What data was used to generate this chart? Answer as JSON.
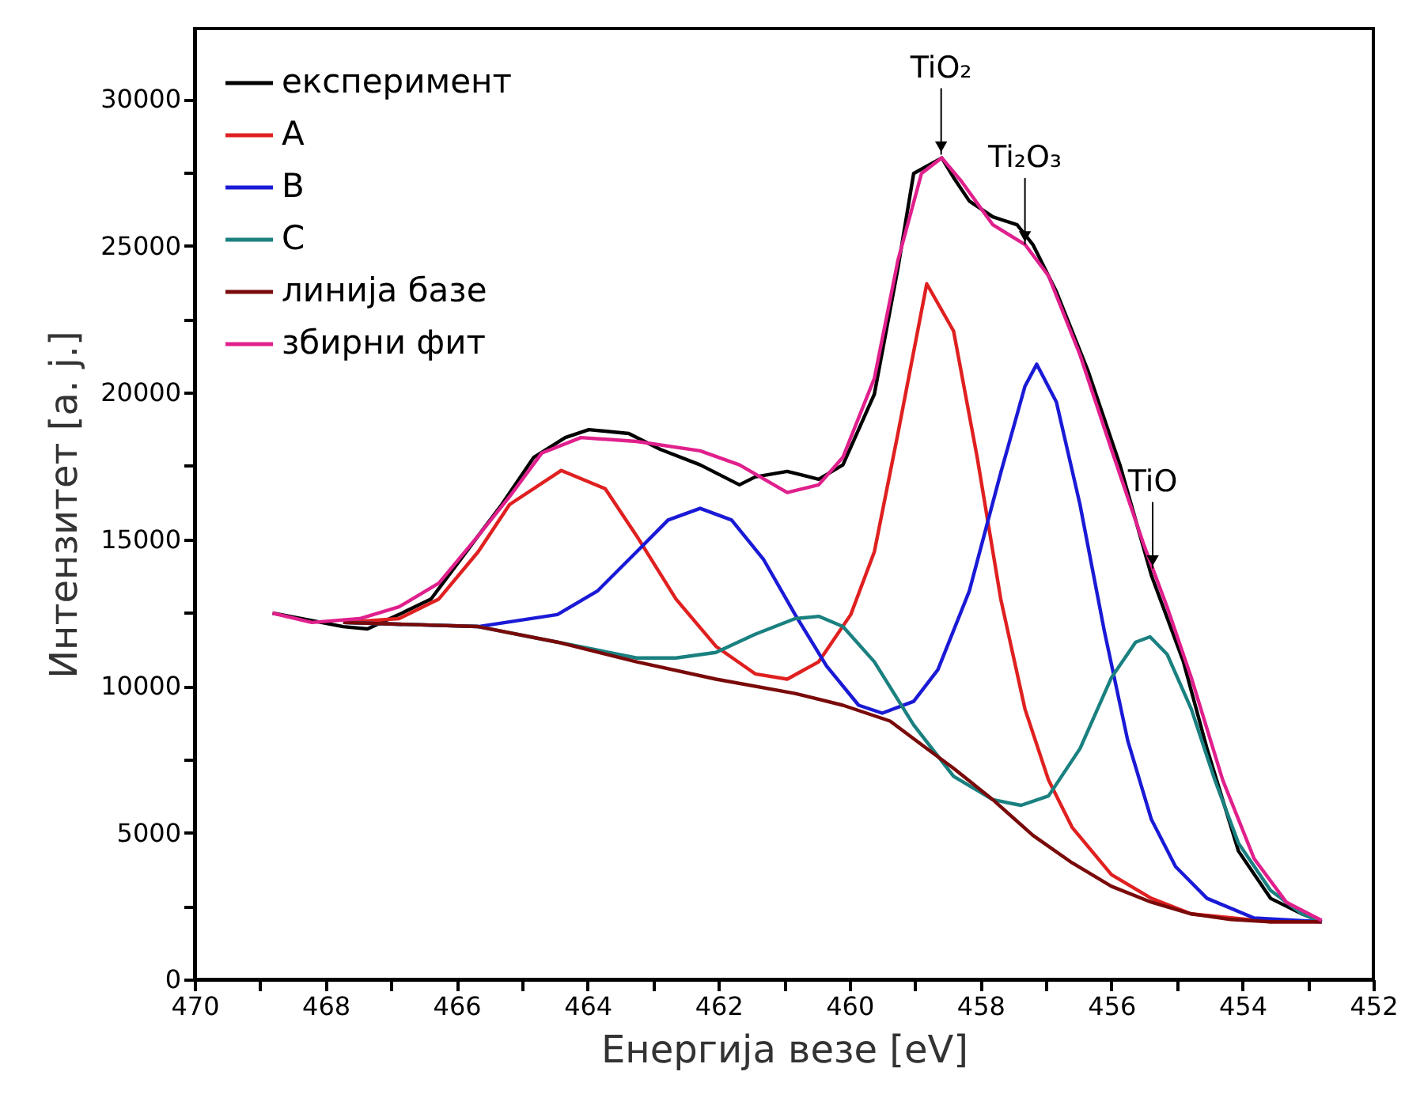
{
  "chart_data": {
    "type": "line",
    "xlabel": "Енергија везе [eV]",
    "ylabel": "Интензитет [a. j.]",
    "xlim": [
      470,
      452
    ],
    "xticks": [
      470,
      {
        "value": 469,
        "label": null
      },
      468,
      {
        "value": 467,
        "label": null
      },
      466,
      {
        "value": 465,
        "label": null
      },
      464,
      {
        "value": 463,
        "label": null
      },
      462,
      {
        "value": 461,
        "label": null
      },
      460,
      {
        "value": 459,
        "label": null
      },
      458,
      {
        "value": 457,
        "label": null
      },
      456,
      {
        "value": 455,
        "label": null
      },
      454,
      {
        "value": 453,
        "label": null
      },
      452
    ],
    "ylim": [
      0,
      32400
    ],
    "yticks": [
      0,
      {
        "value": 2500,
        "label": null
      },
      5000,
      {
        "value": 7500,
        "label": null
      },
      10000,
      {
        "value": 12500,
        "label": null
      },
      15000,
      {
        "value": 17500,
        "label": null
      },
      20000,
      {
        "value": 22500,
        "label": null
      },
      25000,
      {
        "value": 27500,
        "label": null
      },
      30000
    ],
    "grid": false,
    "legend": "top left",
    "line_style": "solid",
    "marker": "none",
    "series": [
      {
        "name": "експеримент",
        "color": "#000000",
        "x": [
          468.81,
          467.73,
          467.36,
          466.88,
          466.39,
          465.67,
          465.31,
          464.82,
          464.34,
          463.98,
          463.37,
          462.89,
          462.28,
          461.68,
          461.44,
          460.95,
          460.47,
          460.1,
          459.62,
          459.26,
          459.02,
          458.59,
          458.41,
          458.17,
          457.81,
          457.44,
          457.2,
          456.84,
          456.36,
          455.87,
          455.39,
          454.9,
          454.54,
          454.06,
          453.57,
          453.09,
          452.79
        ],
        "values": [
          12480,
          12020,
          11940,
          12430,
          12960,
          15110,
          16180,
          17790,
          18460,
          18730,
          18600,
          18060,
          17530,
          16850,
          17120,
          17310,
          17040,
          17530,
          19940,
          24230,
          27460,
          27990,
          27320,
          26520,
          25980,
          25710,
          25040,
          23430,
          20750,
          17530,
          13770,
          10820,
          7860,
          4370,
          2760,
          2230,
          1960
        ]
      },
      {
        "name": "A",
        "color": "#e02020",
        "x": [
          467.73,
          466.88,
          466.27,
          465.67,
          465.19,
          464.4,
          463.73,
          463.25,
          462.65,
          462.04,
          461.44,
          460.95,
          460.47,
          459.98,
          459.62,
          459.26,
          458.82,
          458.41,
          458.05,
          457.69,
          457.32,
          456.96,
          456.6,
          456.0,
          455.39,
          454.78,
          453.57,
          452.79
        ],
        "values": [
          12160,
          12290,
          12960,
          14570,
          16180,
          17340,
          16720,
          15110,
          12960,
          11350,
          10410,
          10230,
          10820,
          12430,
          14570,
          18600,
          23700,
          22090,
          17790,
          12960,
          9210,
          6790,
          5180,
          3570,
          2760,
          2230,
          1960,
          1960
        ]
      },
      {
        "name": "B",
        "color": "#1a1ad6",
        "x": [
          467.73,
          465.67,
          464.46,
          463.85,
          463.25,
          462.77,
          462.28,
          461.8,
          461.31,
          460.83,
          460.35,
          459.86,
          459.5,
          459.02,
          458.65,
          458.17,
          457.69,
          457.32,
          457.14,
          456.84,
          456.48,
          456.11,
          455.75,
          455.39,
          455.02,
          454.54,
          453.82,
          452.79
        ],
        "values": [
          12160,
          12020,
          12430,
          13230,
          14570,
          15650,
          16050,
          15650,
          14300,
          12430,
          10680,
          9340,
          9070,
          9470,
          10550,
          13230,
          17260,
          20210,
          20960,
          19670,
          16180,
          11890,
          8130,
          5450,
          3840,
          2760,
          2090,
          1960
        ]
      },
      {
        "name": "C",
        "color": "#1a8080",
        "x": [
          467.73,
          465.67,
          464.46,
          463.25,
          462.65,
          462.04,
          461.44,
          460.83,
          460.47,
          460.1,
          459.62,
          459.02,
          458.41,
          457.81,
          457.38,
          456.96,
          456.48,
          456.0,
          455.63,
          455.41,
          455.15,
          454.78,
          454.42,
          454.06,
          453.57,
          453.09,
          452.79
        ],
        "values": [
          12160,
          12020,
          11490,
          10950,
          10950,
          11140,
          11760,
          12290,
          12370,
          12020,
          10820,
          8670,
          6920,
          6120,
          5930,
          6250,
          7860,
          10280,
          11490,
          11670,
          11080,
          9210,
          6790,
          4640,
          3030,
          2230,
          1960
        ]
      },
      {
        "name": "линија базе",
        "color": "#7a0a0a",
        "x": [
          467.73,
          465.67,
          464.46,
          463.25,
          462.04,
          460.83,
          460.1,
          459.38,
          458.9,
          458.41,
          457.81,
          457.2,
          456.6,
          456.0,
          455.39,
          454.78,
          454.18,
          453.57,
          452.79
        ],
        "values": [
          12160,
          12020,
          11490,
          10820,
          10230,
          9740,
          9340,
          8800,
          8000,
          7190,
          6120,
          4910,
          3970,
          3170,
          2630,
          2230,
          2040,
          1960,
          1960
        ]
      },
      {
        "name": "збирни фит",
        "color": "#e0208c",
        "x": [
          468.81,
          468.21,
          467.48,
          466.88,
          466.27,
          465.67,
          465.19,
          464.7,
          464.1,
          463.25,
          462.28,
          461.68,
          460.95,
          460.47,
          460.1,
          459.62,
          459.26,
          458.9,
          458.59,
          458.29,
          457.81,
          457.32,
          456.96,
          456.48,
          456.0,
          455.51,
          455.15,
          454.78,
          454.3,
          453.82,
          453.33,
          452.79
        ],
        "values": [
          12480,
          12160,
          12290,
          12690,
          13500,
          15110,
          16450,
          17930,
          18460,
          18330,
          18010,
          17530,
          16590,
          16850,
          17790,
          20480,
          24500,
          27460,
          27990,
          27190,
          25710,
          25040,
          23970,
          21280,
          18060,
          14840,
          12690,
          10280,
          6790,
          4110,
          2630,
          2010
        ]
      }
    ],
    "annotations": [
      {
        "text": "TiO₂",
        "x": 458.6,
        "y": 28100
      },
      {
        "text": "Ti₂O₃",
        "x": 457.32,
        "y": 25040
      },
      {
        "text": "TiO",
        "x": 455.37,
        "y": 14000
      }
    ]
  }
}
